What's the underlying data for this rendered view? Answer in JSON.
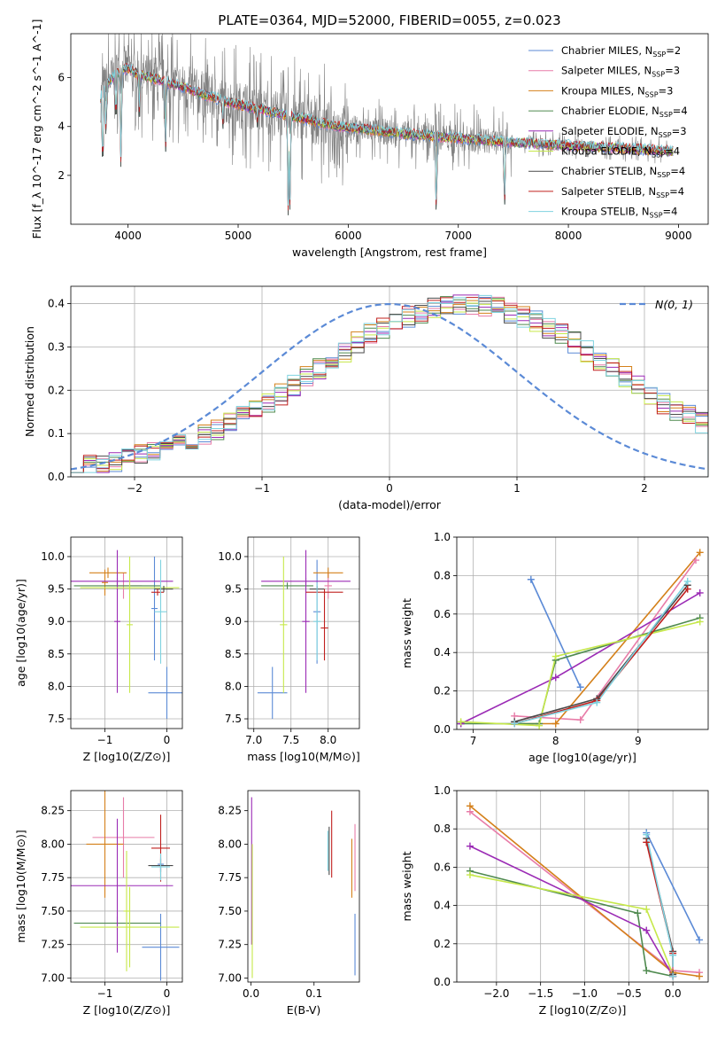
{
  "figure": {
    "title": "PLATE=0364, MJD=52000, FIBERID=0055, z=0.023"
  },
  "series_styles": [
    {
      "name": "Chabrier MILES",
      "nssp": "2",
      "color": "#5b8ad6"
    },
    {
      "name": "Salpeter MILES",
      "nssp": "3",
      "color": "#e87ca8"
    },
    {
      "name": "Kroupa MILES",
      "nssp": "3",
      "color": "#d4801a"
    },
    {
      "name": "Chabrier ELODIE",
      "nssp": "4",
      "color": "#4f8a4f"
    },
    {
      "name": "Salpeter ELODIE",
      "nssp": "3",
      "color": "#9b2bb5"
    },
    {
      "name": "Kroupa ELODIE",
      "nssp": "4",
      "color": "#c6e84a"
    },
    {
      "name": "Chabrier STELIB",
      "nssp": "4",
      "color": "#4a4a4a"
    },
    {
      "name": "Salpeter STELIB",
      "nssp": "4",
      "color": "#c0201e"
    },
    {
      "name": "Kroupa STELIB",
      "nssp": "4",
      "color": "#7fd3e0"
    }
  ],
  "chart_data": [
    {
      "id": "spectrum",
      "type": "line",
      "xlabel": "wavelength [Angstrom, rest frame]",
      "ylabel": "Flux [f_λ 10^-17 erg cm^-2 s^-1 A^-1]",
      "xlim": [
        3480,
        9270
      ],
      "ylim": [
        0,
        7.8
      ],
      "xticks": [
        4000,
        5000,
        6000,
        7000,
        8000,
        9000
      ],
      "yticks": [
        2,
        4,
        6
      ],
      "grid": false,
      "legend": "top-right",
      "data_color": "#808080",
      "continuum": {
        "x": [
          3750,
          3800,
          3900,
          4000,
          4100,
          4300,
          4500,
          4700,
          4900,
          5100,
          5300,
          5500,
          5700,
          5900,
          6100,
          6300,
          6500,
          6700,
          6900,
          7100,
          7300,
          7500,
          7700,
          7900,
          8100,
          8300,
          8500,
          8700,
          8900
        ],
        "y": [
          5.2,
          5.7,
          6.2,
          6.4,
          6.1,
          5.9,
          5.6,
          5.3,
          5.0,
          4.8,
          4.6,
          4.4,
          4.2,
          4.0,
          3.9,
          3.8,
          3.7,
          3.65,
          3.55,
          3.5,
          3.4,
          3.35,
          3.3,
          3.25,
          3.2,
          3.15,
          3.1,
          3.05,
          3.0
        ]
      },
      "absorption_dips": [
        {
          "x": 3770,
          "y": 1.5
        },
        {
          "x": 3800,
          "y": 3.3
        },
        {
          "x": 3890,
          "y": 3.7
        },
        {
          "x": 3935,
          "y": 2.0
        },
        {
          "x": 4102,
          "y": 4.4
        },
        {
          "x": 4340,
          "y": 2.4
        },
        {
          "x": 4861,
          "y": 3.8
        },
        {
          "x": 5175,
          "y": 3.9
        },
        {
          "x": 5455,
          "y": 0.0
        },
        {
          "x": 5470,
          "y": 0.6
        },
        {
          "x": 6800,
          "y": 0.0
        },
        {
          "x": 7420,
          "y": 0.3
        }
      ]
    },
    {
      "id": "residuals",
      "type": "bar",
      "xlabel": "(data-model)/error",
      "ylabel": "Normed distribution",
      "xlim": [
        -2.5,
        2.5
      ],
      "ylim": [
        0,
        0.44
      ],
      "xticks": [
        -2,
        -1,
        0,
        1,
        2
      ],
      "yticks": [
        0.0,
        0.1,
        0.2,
        0.3,
        0.4
      ],
      "grid": true,
      "legend": "top-right",
      "bin_edges_start": -2.5,
      "bin_width": 0.1,
      "base": [
        0.02,
        0.025,
        0.03,
        0.035,
        0.04,
        0.05,
        0.055,
        0.065,
        0.075,
        0.085,
        0.095,
        0.11,
        0.125,
        0.14,
        0.155,
        0.17,
        0.19,
        0.21,
        0.23,
        0.25,
        0.27,
        0.29,
        0.31,
        0.33,
        0.345,
        0.36,
        0.37,
        0.38,
        0.39,
        0.395,
        0.4,
        0.4,
        0.395,
        0.39,
        0.38,
        0.37,
        0.36,
        0.345,
        0.33,
        0.31,
        0.29,
        0.27,
        0.25,
        0.23,
        0.21,
        0.19,
        0.17,
        0.155,
        0.14,
        0.125
      ],
      "gaussian": {
        "label": "N(0, 1)",
        "mu": 0,
        "sigma": 1,
        "color": "#5b8ad6"
      }
    },
    {
      "id": "age_vs_Z",
      "type": "scatter",
      "xlabel": "Z [log10(Z/Z⊙)]",
      "ylabel": "age  [log10(age/yr)]",
      "xlim": [
        -1.55,
        0.25
      ],
      "ylim": [
        7.35,
        10.3
      ],
      "xticks": [
        -1,
        0
      ],
      "yticks": [
        7.5,
        8.0,
        8.5,
        9.0,
        9.5,
        10.0
      ],
      "grid": true,
      "points": [
        {
          "s": 0,
          "x": 0.0,
          "xerr": 0.3,
          "y": 7.9,
          "yerr": 0.4
        },
        {
          "s": 0,
          "x": -0.2,
          "xerr": 0.05,
          "y": 9.2,
          "yerr": 0.8
        },
        {
          "s": 1,
          "x": -0.7,
          "xerr": 0.3,
          "y": 9.55,
          "yerr": 0.2
        },
        {
          "s": 2,
          "x": -0.95,
          "xerr": 0.3,
          "y": 9.75,
          "yerr": 0.08
        },
        {
          "s": 2,
          "x": -1.0,
          "xerr": 0.05,
          "y": 9.6,
          "yerr": 0.2
        },
        {
          "s": 3,
          "x": -0.8,
          "xerr": 0.7,
          "y": 9.55,
          "yerr": 0.05
        },
        {
          "s": 4,
          "x": -0.8,
          "xerr": 0.9,
          "y": 9.62,
          "yerr": 0.05
        },
        {
          "s": 4,
          "x": -0.8,
          "xerr": 0.05,
          "y": 9.0,
          "yerr": 1.1
        },
        {
          "s": 5,
          "x": -0.6,
          "xerr": 0.8,
          "y": 9.52,
          "yerr": 0.05
        },
        {
          "s": 5,
          "x": -0.6,
          "xerr": 0.05,
          "y": 8.95,
          "yerr": 1.05
        },
        {
          "s": 6,
          "x": -0.05,
          "xerr": 0.15,
          "y": 9.5,
          "yerr": 0.05
        },
        {
          "s": 7,
          "x": -0.15,
          "xerr": 0.1,
          "y": 9.45,
          "yerr": 0.05
        },
        {
          "s": 8,
          "x": -0.1,
          "xerr": 0.1,
          "y": 9.15,
          "yerr": 0.8
        }
      ]
    },
    {
      "id": "age_vs_mass",
      "type": "scatter",
      "xlabel": "mass [log10(M/M⊙)]",
      "ylabel": "",
      "xlim": [
        6.92,
        8.42
      ],
      "ylim": [
        7.35,
        10.3
      ],
      "xticks": [
        7.0,
        7.5,
        8.0
      ],
      "yticks": [
        7.5,
        8.0,
        8.5,
        9.0,
        9.5,
        10.0
      ],
      "grid": true,
      "points": [
        {
          "s": 0,
          "x": 7.25,
          "xerr": 0.2,
          "y": 7.9,
          "yerr": 0.4
        },
        {
          "s": 0,
          "x": 7.85,
          "xerr": 0.05,
          "y": 9.15,
          "yerr": 0.8
        },
        {
          "s": 1,
          "x": 8.0,
          "xerr": 0.05,
          "y": 9.55,
          "yerr": 0.2
        },
        {
          "s": 2,
          "x": 8.0,
          "xerr": 0.2,
          "y": 9.75,
          "yerr": 0.08
        },
        {
          "s": 3,
          "x": 7.45,
          "xerr": 0.35,
          "y": 9.55,
          "yerr": 0.05
        },
        {
          "s": 4,
          "x": 7.7,
          "xerr": 0.6,
          "y": 9.62,
          "yerr": 0.05
        },
        {
          "s": 4,
          "x": 7.7,
          "xerr": 0.05,
          "y": 9.0,
          "yerr": 1.1
        },
        {
          "s": 5,
          "x": 7.4,
          "xerr": 0.05,
          "y": 8.95,
          "yerr": 1.05
        },
        {
          "s": 6,
          "x": 7.85,
          "xerr": 0.1,
          "y": 9.5,
          "yerr": 0.05
        },
        {
          "s": 7,
          "x": 7.95,
          "xerr": 0.25,
          "y": 9.45,
          "yerr": 0.05
        },
        {
          "s": 7,
          "x": 7.95,
          "xerr": 0.05,
          "y": 8.9,
          "yerr": 0.5
        },
        {
          "s": 8,
          "x": 7.85,
          "xerr": 0.05,
          "y": 9.0,
          "yerr": 0.6
        }
      ]
    },
    {
      "id": "weight_vs_age",
      "type": "line",
      "xlabel": "age  [log10(age/yr)]",
      "ylabel": "mass weight",
      "xlim": [
        6.8,
        9.85
      ],
      "ylim": [
        0,
        1.0
      ],
      "xticks": [
        7,
        8,
        9
      ],
      "yticks": [
        0.0,
        0.2,
        0.4,
        0.6,
        0.8,
        1.0
      ],
      "grid": true,
      "series": [
        {
          "s": 0,
          "x": [
            7.7,
            8.3
          ],
          "y": [
            0.78,
            0.22
          ]
        },
        {
          "s": 1,
          "x": [
            7.5,
            8.3,
            9.7
          ],
          "y": [
            0.07,
            0.05,
            0.88
          ]
        },
        {
          "s": 2,
          "x": [
            7.5,
            8.0,
            9.75
          ],
          "y": [
            0.03,
            0.03,
            0.92
          ]
        },
        {
          "s": 3,
          "x": [
            6.85,
            7.8,
            8.0,
            9.75
          ],
          "y": [
            0.03,
            0.03,
            0.36,
            0.58
          ]
        },
        {
          "s": 4,
          "x": [
            6.85,
            8.0,
            9.75
          ],
          "y": [
            0.03,
            0.27,
            0.71
          ]
        },
        {
          "s": 5,
          "x": [
            6.85,
            7.8,
            8.0,
            9.75
          ],
          "y": [
            0.04,
            0.02,
            0.38,
            0.56
          ]
        },
        {
          "s": 6,
          "x": [
            7.5,
            8.5,
            9.6
          ],
          "y": [
            0.04,
            0.16,
            0.75
          ]
        },
        {
          "s": 7,
          "x": [
            7.5,
            8.5,
            9.6
          ],
          "y": [
            0.03,
            0.15,
            0.73
          ]
        },
        {
          "s": 8,
          "x": [
            7.5,
            8.5,
            9.6
          ],
          "y": [
            0.03,
            0.14,
            0.77
          ]
        }
      ]
    },
    {
      "id": "mass_vs_Z",
      "type": "scatter",
      "xlabel": "Z [log10(Z/Z⊙)]",
      "ylabel": "mass [log10(M/M⊙)]",
      "xlim": [
        -1.55,
        0.25
      ],
      "ylim": [
        6.97,
        8.4
      ],
      "xticks": [
        -1,
        0
      ],
      "yticks": [
        7.0,
        7.25,
        7.5,
        7.75,
        8.0,
        8.25
      ],
      "grid": true,
      "points": [
        {
          "s": 0,
          "x": -0.1,
          "xerr": 0.3,
          "y": 7.23,
          "yerr": 0.25
        },
        {
          "s": 0,
          "x": -0.1,
          "xerr": 0.05,
          "y": 7.85,
          "yerr": 0.05
        },
        {
          "s": 1,
          "x": -0.7,
          "xerr": 0.5,
          "y": 8.05,
          "yerr": 0.3
        },
        {
          "s": 2,
          "x": -1.0,
          "xerr": 0.3,
          "y": 8.0,
          "yerr": 0.4
        },
        {
          "s": 3,
          "x": -0.8,
          "xerr": 0.7,
          "y": 7.41,
          "yerr": 0.05
        },
        {
          "s": 4,
          "x": -0.8,
          "xerr": 0.9,
          "y": 7.69,
          "yerr": 0.5
        },
        {
          "s": 5,
          "x": -0.6,
          "xerr": 0.8,
          "y": 7.38,
          "yerr": 0.3
        },
        {
          "s": 5,
          "x": -0.65,
          "xerr": 0.05,
          "y": 7.5,
          "yerr": 0.45
        },
        {
          "s": 6,
          "x": -0.1,
          "xerr": 0.2,
          "y": 7.84,
          "yerr": 0.05
        },
        {
          "s": 7,
          "x": -0.1,
          "xerr": 0.15,
          "y": 7.97,
          "yerr": 0.25
        },
        {
          "s": 8,
          "x": -0.1,
          "xerr": 0.15,
          "y": 7.83,
          "yerr": 0.1
        }
      ]
    },
    {
      "id": "mass_vs_ebv",
      "type": "scatter",
      "xlabel": "E(B-V)",
      "ylabel": "",
      "xlim": [
        -0.005,
        0.172
      ],
      "ylim": [
        6.97,
        8.4
      ],
      "xticks": [
        0.0,
        0.1
      ],
      "yticks": [
        7.0,
        7.25,
        7.5,
        7.75,
        8.0,
        8.25
      ],
      "grid": false,
      "points": [
        {
          "s": 0,
          "x": 0.165,
          "xerr": 0,
          "y": 7.25,
          "yerr": 0.23
        },
        {
          "s": 1,
          "x": 0.165,
          "xerr": 0,
          "y": 7.9,
          "yerr": 0.25
        },
        {
          "s": 2,
          "x": 0.16,
          "xerr": 0,
          "y": 7.82,
          "yerr": 0.22
        },
        {
          "s": 4,
          "x": 0.001,
          "xerr": 0,
          "y": 7.8,
          "yerr": 0.55
        },
        {
          "s": 5,
          "x": 0.002,
          "xerr": 0,
          "y": 7.5,
          "yerr": 0.5
        },
        {
          "s": 6,
          "x": 0.124,
          "xerr": 0,
          "y": 7.95,
          "yerr": 0.18
        },
        {
          "s": 7,
          "x": 0.128,
          "xerr": 0,
          "y": 8.0,
          "yerr": 0.25
        },
        {
          "s": 8,
          "x": 0.122,
          "xerr": 0,
          "y": 7.95,
          "yerr": 0.15
        }
      ]
    },
    {
      "id": "weight_vs_Z",
      "type": "line",
      "xlabel": "Z [log10(Z/Z⊙)]",
      "ylabel": "mass weight",
      "xlim": [
        -2.45,
        0.4
      ],
      "ylim": [
        0,
        1.0
      ],
      "xticks": [
        -2.0,
        -1.5,
        -1.0,
        -0.5,
        0.0
      ],
      "yticks": [
        0.0,
        0.2,
        0.4,
        0.6,
        0.8,
        1.0
      ],
      "grid": true,
      "series": [
        {
          "s": 0,
          "x": [
            -0.3,
            0.3
          ],
          "y": [
            0.78,
            0.22
          ]
        },
        {
          "s": 1,
          "x": [
            -2.3,
            0.0,
            0.3
          ],
          "y": [
            0.89,
            0.06,
            0.05
          ]
        },
        {
          "s": 2,
          "x": [
            -2.3,
            0.0,
            0.3
          ],
          "y": [
            0.92,
            0.05,
            0.03
          ]
        },
        {
          "s": 3,
          "x": [
            -2.3,
            -0.4,
            -0.3,
            0.0
          ],
          "y": [
            0.58,
            0.36,
            0.06,
            0.03
          ]
        },
        {
          "s": 4,
          "x": [
            -2.3,
            -0.3,
            0.0
          ],
          "y": [
            0.71,
            0.27,
            0.03
          ]
        },
        {
          "s": 5,
          "x": [
            -2.3,
            -0.3,
            0.0
          ],
          "y": [
            0.56,
            0.38,
            0.04
          ]
        },
        {
          "s": 6,
          "x": [
            -0.3,
            0.0,
            0.0
          ],
          "y": [
            0.75,
            0.16,
            0.04
          ]
        },
        {
          "s": 7,
          "x": [
            -0.3,
            0.0,
            0.0
          ],
          "y": [
            0.73,
            0.15,
            0.03
          ]
        },
        {
          "s": 8,
          "x": [
            -0.3,
            0.0,
            0.0
          ],
          "y": [
            0.77,
            0.14,
            0.03
          ]
        }
      ]
    }
  ]
}
